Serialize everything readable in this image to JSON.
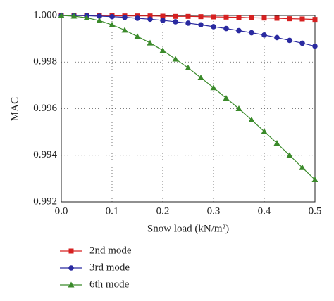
{
  "chart_data": {
    "type": "line",
    "x_label": "Snow load (kN/m²)",
    "y_label": "MAC",
    "x": [
      0,
      0.025,
      0.05,
      0.075,
      0.1,
      0.125,
      0.15,
      0.175,
      0.2,
      0.225,
      0.25,
      0.275,
      0.3,
      0.325,
      0.35,
      0.375,
      0.4,
      0.425,
      0.45,
      0.475,
      0.5
    ],
    "series": [
      {
        "name": "2nd mode",
        "color": "#d62020",
        "marker": "square",
        "values": [
          1.0,
          1.0,
          0.99999,
          0.99999,
          0.99999,
          0.99998,
          0.99998,
          0.99998,
          0.99997,
          0.99996,
          0.99996,
          0.99995,
          0.99994,
          0.99993,
          0.99992,
          0.9999,
          0.99989,
          0.99988,
          0.99986,
          0.99985,
          0.99983
        ]
      },
      {
        "name": "3rd mode",
        "color": "#2a2aa0",
        "marker": "circle",
        "values": [
          1.0,
          1.0,
          0.99999,
          0.99997,
          0.99995,
          0.99992,
          0.99988,
          0.99984,
          0.99979,
          0.99973,
          0.99967,
          0.9996,
          0.99952,
          0.99944,
          0.99935,
          0.99926,
          0.99916,
          0.99905,
          0.99893,
          0.99881,
          0.99868
        ]
      },
      {
        "name": "6th mode",
        "color": "#3a8a2a",
        "marker": "triangle",
        "values": [
          1.0,
          0.99997,
          0.9999,
          0.99978,
          0.9996,
          0.99937,
          0.9991,
          0.99882,
          0.9985,
          0.99813,
          0.99775,
          0.99733,
          0.9969,
          0.99645,
          0.996,
          0.99552,
          0.99502,
          0.99452,
          0.994,
          0.99347,
          0.99295
        ]
      }
    ],
    "xlim": [
      0,
      0.5
    ],
    "ylim": [
      0.992,
      1.0
    ],
    "xticks": [
      {
        "value": 0,
        "label": "0.0"
      },
      0.1,
      0.2,
      0.3,
      0.4,
      0.5
    ],
    "yticks": [
      0.992,
      0.994,
      0.996,
      0.998,
      {
        "value": 1.0,
        "label": "1.000"
      }
    ],
    "grid": true
  }
}
